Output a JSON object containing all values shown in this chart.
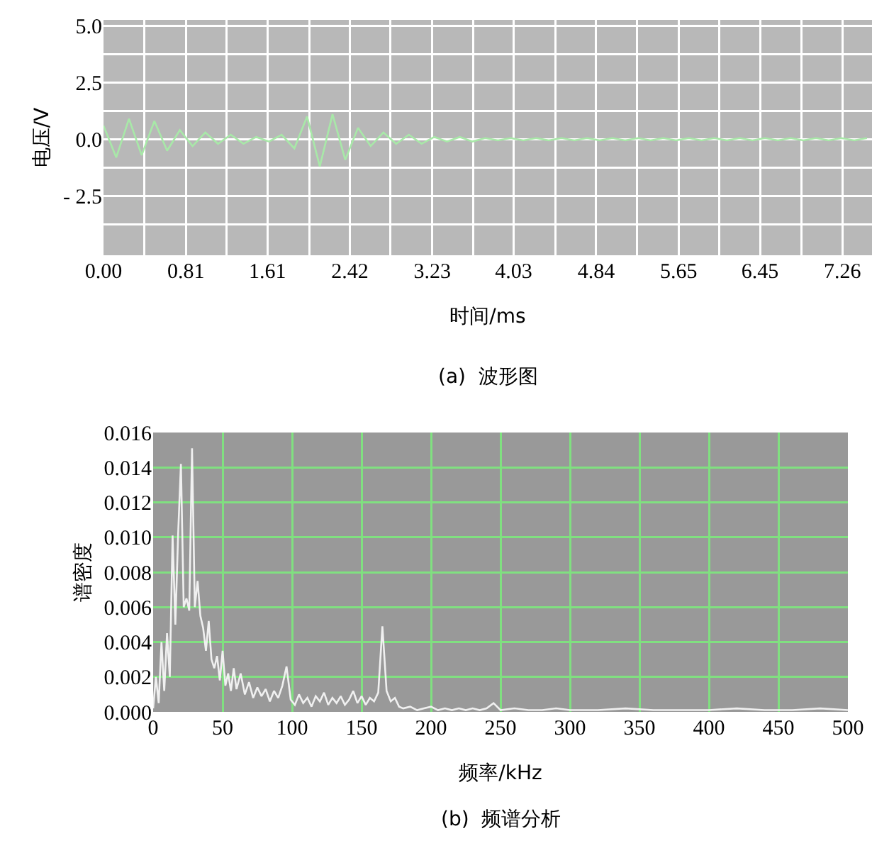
{
  "chart_data": [
    {
      "type": "line",
      "xlabel": "时间/ms",
      "ylabel": "电压/V",
      "annotations": [
        "(a)  波形图"
      ],
      "xlim": [
        0,
        7.55
      ],
      "ylim": [
        -5.1,
        5.25
      ],
      "xticks": [
        {
          "value": 0,
          "label": "0.00"
        },
        {
          "value": 0.4,
          "label": null
        },
        {
          "value": 0.81,
          "label": "0.81"
        },
        {
          "value": 1.21,
          "label": null
        },
        {
          "value": 1.61,
          "label": "1.61"
        },
        {
          "value": 2.02,
          "label": null
        },
        {
          "value": 2.42,
          "label": "2.42"
        },
        {
          "value": 2.82,
          "label": null
        },
        {
          "value": 3.23,
          "label": "3.23"
        },
        {
          "value": 3.63,
          "label": null
        },
        {
          "value": 4.03,
          "label": "4.03"
        },
        {
          "value": 4.44,
          "label": null
        },
        {
          "value": 4.84,
          "label": "4.84"
        },
        {
          "value": 5.24,
          "label": null
        },
        {
          "value": 5.65,
          "label": "5.65"
        },
        {
          "value": 6.05,
          "label": null
        },
        {
          "value": 6.45,
          "label": "6.45"
        },
        {
          "value": 6.86,
          "label": null
        },
        {
          "value": 7.26,
          "label": "7.26"
        }
      ],
      "yticks": [
        {
          "value": -3.75,
          "label": null
        },
        {
          "value": -2.5,
          "label": "- 2.5"
        },
        {
          "value": -1.25,
          "label": null
        },
        {
          "value": 0,
          "label": "0.0"
        },
        {
          "value": 1.25,
          "label": null
        },
        {
          "value": 2.5,
          "label": "2.5"
        },
        {
          "value": 3.75,
          "label": null
        },
        {
          "value": 5,
          "label": "5.0"
        }
      ],
      "grid": true,
      "marker": "none",
      "line_style": "solid",
      "x": [
        0,
        0.125,
        0.25,
        0.375,
        0.5,
        0.625,
        0.75,
        0.875,
        1,
        1.125,
        1.25,
        1.375,
        1.5,
        1.625,
        1.75,
        1.875,
        2,
        2.125,
        2.25,
        2.375,
        2.5,
        2.625,
        2.75,
        2.875,
        3,
        3.125,
        3.25,
        3.375,
        3.5,
        3.625,
        3.75,
        3.875,
        4,
        4.125,
        4.25,
        4.375,
        4.5,
        4.625,
        4.75,
        4.875,
        5,
        5.125,
        5.25,
        5.375,
        5.5,
        5.625,
        5.75,
        5.875,
        6,
        6.125,
        6.25,
        6.375,
        6.5,
        6.625,
        6.75,
        6.875,
        7,
        7.125,
        7.25,
        7.375,
        7.5
      ],
      "series": [
        {
          "color": "#a8e8a8",
          "values": [
            0.6,
            -0.8,
            0.9,
            -0.7,
            0.8,
            -0.5,
            0.4,
            -0.3,
            0.3,
            -0.2,
            0.2,
            -0.2,
            0.1,
            -0.1,
            0.2,
            -0.4,
            1.0,
            -1.2,
            1.1,
            -0.9,
            0.5,
            -0.3,
            0.3,
            -0.2,
            0.2,
            -0.2,
            0.1,
            -0.1,
            0.1,
            -0.1,
            0.05,
            -0.05,
            0.05,
            -0.05,
            0.05,
            -0.05,
            0.05,
            -0.05,
            0.05,
            -0.05,
            0.05,
            -0.05,
            0.05,
            -0.05,
            0.05,
            -0.05,
            0.05,
            -0.05,
            0.05,
            -0.05,
            0.05,
            -0.05,
            0.05,
            -0.05,
            0.05,
            -0.05,
            0.05,
            -0.05,
            0.05,
            -0.05,
            0.05
          ]
        }
      ]
    },
    {
      "type": "line",
      "xlabel": "频率/kHz",
      "ylabel": "谱密度",
      "annotations": [
        "(b)  频谱分析"
      ],
      "xlim": [
        0,
        500
      ],
      "ylim": [
        0,
        0.016
      ],
      "xticks": [
        0,
        50,
        100,
        150,
        200,
        250,
        300,
        350,
        400,
        450,
        500
      ],
      "yticks": [
        {
          "value": 0,
          "label": "0.000"
        },
        0.002,
        0.004,
        0.006,
        0.008,
        {
          "value": 0.01,
          "label": "0.010"
        },
        0.012,
        0.014,
        0.016
      ],
      "grid": true,
      "marker": "none",
      "line_style": "solid",
      "x": [
        0,
        2,
        4,
        6,
        8,
        10,
        12,
        14,
        16,
        18,
        20,
        22,
        24,
        26,
        28,
        30,
        32,
        34,
        36,
        38,
        40,
        42,
        44,
        46,
        48,
        50,
        52,
        54,
        56,
        58,
        60,
        63,
        66,
        69,
        72,
        75,
        78,
        81,
        84,
        87,
        90,
        93,
        96,
        99,
        102,
        105,
        108,
        111,
        114,
        117,
        120,
        123,
        126,
        129,
        132,
        135,
        138,
        141,
        144,
        147,
        150,
        153,
        156,
        159,
        162,
        165,
        168,
        171,
        174,
        177,
        180,
        185,
        190,
        195,
        200,
        205,
        210,
        215,
        220,
        225,
        230,
        235,
        240,
        245,
        250,
        260,
        270,
        280,
        290,
        300,
        320,
        340,
        360,
        380,
        400,
        420,
        440,
        460,
        480,
        500
      ],
      "series": [
        {
          "color": "#f0f0f0",
          "values": [
            0.0002,
            0.002,
            0.0005,
            0.004,
            0.0012,
            0.0045,
            0.002,
            0.0101,
            0.005,
            0.0102,
            0.0142,
            0.006,
            0.0065,
            0.0058,
            0.0151,
            0.006,
            0.0075,
            0.0055,
            0.0048,
            0.0035,
            0.0052,
            0.003,
            0.0025,
            0.0032,
            0.0018,
            0.0035,
            0.0015,
            0.0022,
            0.0012,
            0.0025,
            0.0013,
            0.0022,
            0.001,
            0.0017,
            0.0008,
            0.0014,
            0.0009,
            0.0013,
            0.0006,
            0.0012,
            0.0008,
            0.0015,
            0.0026,
            0.0007,
            0.0004,
            0.001,
            0.0005,
            0.0008,
            0.0003,
            0.0009,
            0.0006,
            0.0011,
            0.0004,
            0.0008,
            0.0005,
            0.0009,
            0.0004,
            0.0007,
            0.0012,
            0.0005,
            0.0009,
            0.0004,
            0.0008,
            0.0006,
            0.0011,
            0.0049,
            0.0012,
            0.0006,
            0.0008,
            0.0003,
            0.0002,
            0.0003,
            0.0001,
            0.0002,
            0.0003,
            0.0001,
            0.0002,
            0.0001,
            0.0002,
            0.0001,
            0.0002,
            0.0001,
            0.0002,
            0.0005,
            0.0001,
            0.0002,
            0.0001,
            0.0001,
            0.0002,
            0.0001,
            0.0001,
            0.0002,
            0.0001,
            0.0001,
            0.0001,
            0.0002,
            0.0001,
            0.0001,
            0.0002,
            0.0001
          ]
        }
      ]
    }
  ]
}
